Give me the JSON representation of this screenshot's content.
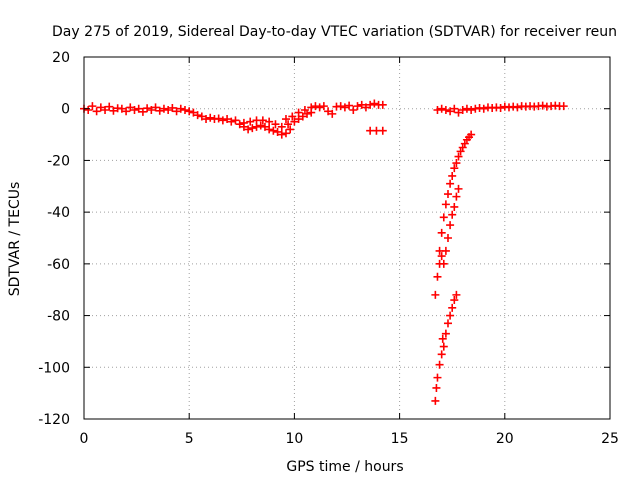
{
  "chart_data": {
    "type": "scatter",
    "title": "Day 275 of 2019, Sidereal Day-to-day VTEC variation (SDTVAR) for receiver reun",
    "xlabel": "GPS time / hours",
    "ylabel": "SDTVAR / TECUs",
    "xlim": [
      0,
      25
    ],
    "ylim": [
      -120,
      20
    ],
    "xticks": [
      0,
      5,
      10,
      15,
      20,
      25
    ],
    "yticks": [
      -120,
      -100,
      -80,
      -60,
      -40,
      -20,
      0,
      20
    ],
    "grid": true,
    "legend": "none",
    "marker": "plus",
    "series_color": "#ff0000",
    "series": [
      {
        "points": [
          [
            0.0,
            0.0
          ],
          [
            0.2,
            -0.5
          ],
          [
            0.4,
            1.0
          ],
          [
            0.6,
            -1.0
          ],
          [
            0.8,
            0.5
          ],
          [
            1.0,
            -0.5
          ],
          [
            1.2,
            0.8
          ],
          [
            1.4,
            -0.8
          ],
          [
            1.6,
            0.2
          ],
          [
            1.8,
            0.0
          ],
          [
            2.0,
            -1.0
          ],
          [
            2.2,
            0.5
          ],
          [
            2.4,
            -0.5
          ],
          [
            2.6,
            0.0
          ],
          [
            2.8,
            -1.2
          ],
          [
            3.0,
            0.2
          ],
          [
            3.2,
            -0.5
          ],
          [
            3.4,
            0.5
          ],
          [
            3.6,
            -0.8
          ],
          [
            3.8,
            0.0
          ],
          [
            4.0,
            -0.5
          ],
          [
            4.2,
            0.3
          ],
          [
            4.4,
            -1.0
          ],
          [
            4.6,
            0.0
          ],
          [
            4.8,
            -0.5
          ],
          [
            5.0,
            -1.0
          ],
          [
            5.2,
            -1.5
          ],
          [
            5.4,
            -2.5
          ],
          [
            5.6,
            -3.0
          ],
          [
            5.8,
            -4.0
          ],
          [
            6.0,
            -3.5
          ],
          [
            6.2,
            -4.0
          ],
          [
            6.4,
            -3.8
          ],
          [
            6.6,
            -4.5
          ],
          [
            6.8,
            -4.0
          ],
          [
            7.0,
            -5.0
          ],
          [
            7.2,
            -4.5
          ],
          [
            7.4,
            -6.0
          ],
          [
            7.6,
            -7.0
          ],
          [
            7.8,
            -8.0
          ],
          [
            8.0,
            -7.5
          ],
          [
            8.2,
            -7.0
          ],
          [
            8.4,
            -6.5
          ],
          [
            8.6,
            -7.0
          ],
          [
            8.8,
            -8.0
          ],
          [
            9.0,
            -8.5
          ],
          [
            9.2,
            -9.0
          ],
          [
            9.4,
            -10.0
          ],
          [
            9.6,
            -9.5
          ],
          [
            9.8,
            -8.0
          ],
          [
            7.6,
            -5.5
          ],
          [
            7.9,
            -5.0
          ],
          [
            8.2,
            -4.5
          ],
          [
            8.5,
            -4.5
          ],
          [
            8.8,
            -5.0
          ],
          [
            9.1,
            -6.0
          ],
          [
            9.4,
            -7.0
          ],
          [
            9.7,
            -6.0
          ],
          [
            10.0,
            -5.0
          ],
          [
            10.2,
            -4.0
          ],
          [
            10.4,
            -3.0
          ],
          [
            10.6,
            -2.0
          ],
          [
            10.8,
            -1.5
          ],
          [
            9.6,
            -4.0
          ],
          [
            9.9,
            -3.0
          ],
          [
            10.2,
            -1.5
          ],
          [
            10.5,
            -0.5
          ],
          [
            10.8,
            0.5
          ],
          [
            11.0,
            1.0
          ],
          [
            11.2,
            0.5
          ],
          [
            11.4,
            1.0
          ],
          [
            11.6,
            -1.0
          ],
          [
            11.8,
            -2.0
          ],
          [
            12.0,
            0.8
          ],
          [
            12.2,
            1.0
          ],
          [
            12.4,
            0.5
          ],
          [
            12.6,
            1.2
          ],
          [
            12.8,
            -0.5
          ],
          [
            13.0,
            1.0
          ],
          [
            13.2,
            1.5
          ],
          [
            13.4,
            0.5
          ],
          [
            13.6,
            1.5
          ],
          [
            13.8,
            2.0
          ],
          [
            14.0,
            1.5
          ],
          [
            14.2,
            1.5
          ],
          [
            13.6,
            -8.5
          ],
          [
            13.9,
            -8.5
          ],
          [
            14.2,
            -8.5
          ],
          [
            16.8,
            -0.5
          ],
          [
            17.0,
            0.0
          ],
          [
            17.2,
            -0.5
          ],
          [
            17.4,
            -1.0
          ],
          [
            17.6,
            0.0
          ],
          [
            17.8,
            -1.5
          ],
          [
            18.0,
            -0.5
          ],
          [
            18.2,
            0.0
          ],
          [
            18.4,
            -0.5
          ],
          [
            18.6,
            0.0
          ],
          [
            18.8,
            0.3
          ],
          [
            19.0,
            0.0
          ],
          [
            19.2,
            0.5
          ],
          [
            19.4,
            0.3
          ],
          [
            19.6,
            0.5
          ],
          [
            19.8,
            0.3
          ],
          [
            20.0,
            0.8
          ],
          [
            20.2,
            0.5
          ],
          [
            20.4,
            0.8
          ],
          [
            20.6,
            0.5
          ],
          [
            20.8,
            1.0
          ],
          [
            21.0,
            0.8
          ],
          [
            21.2,
            1.0
          ],
          [
            21.4,
            0.8
          ],
          [
            21.6,
            1.0
          ],
          [
            21.8,
            1.2
          ],
          [
            22.0,
            0.8
          ],
          [
            22.2,
            1.0
          ],
          [
            22.4,
            1.2
          ],
          [
            22.6,
            1.0
          ],
          [
            22.8,
            1.0
          ],
          [
            16.9,
            -55.0
          ],
          [
            17.0,
            -48.0
          ],
          [
            17.1,
            -42.0
          ],
          [
            17.2,
            -37.0
          ],
          [
            17.3,
            -33.0
          ],
          [
            17.4,
            -29.0
          ],
          [
            17.5,
            -26.0
          ],
          [
            17.6,
            -23.0
          ],
          [
            17.7,
            -21.0
          ],
          [
            17.8,
            -18.5
          ],
          [
            17.9,
            -16.5
          ],
          [
            18.0,
            -15.0
          ],
          [
            18.1,
            -13.5
          ],
          [
            18.2,
            -12.0
          ],
          [
            18.3,
            -11.0
          ],
          [
            18.4,
            -10.0
          ],
          [
            16.7,
            -72.0
          ],
          [
            16.8,
            -65.0
          ],
          [
            16.9,
            -60.0
          ],
          [
            17.0,
            -57.0
          ],
          [
            17.1,
            -60.0
          ],
          [
            17.2,
            -55.0
          ],
          [
            17.3,
            -50.0
          ],
          [
            17.4,
            -45.0
          ],
          [
            17.5,
            -41.0
          ],
          [
            17.6,
            -38.0
          ],
          [
            17.7,
            -34.0
          ],
          [
            17.8,
            -31.0
          ],
          [
            16.7,
            -113.0
          ],
          [
            16.75,
            -108.0
          ],
          [
            16.8,
            -104.0
          ],
          [
            16.9,
            -99.0
          ],
          [
            17.0,
            -95.0
          ],
          [
            17.05,
            -89.0
          ],
          [
            17.1,
            -92.0
          ],
          [
            17.2,
            -87.0
          ],
          [
            17.3,
            -83.0
          ],
          [
            17.4,
            -80.0
          ],
          [
            17.5,
            -77.0
          ],
          [
            17.6,
            -74.0
          ],
          [
            17.7,
            -72.0
          ]
        ]
      }
    ]
  }
}
